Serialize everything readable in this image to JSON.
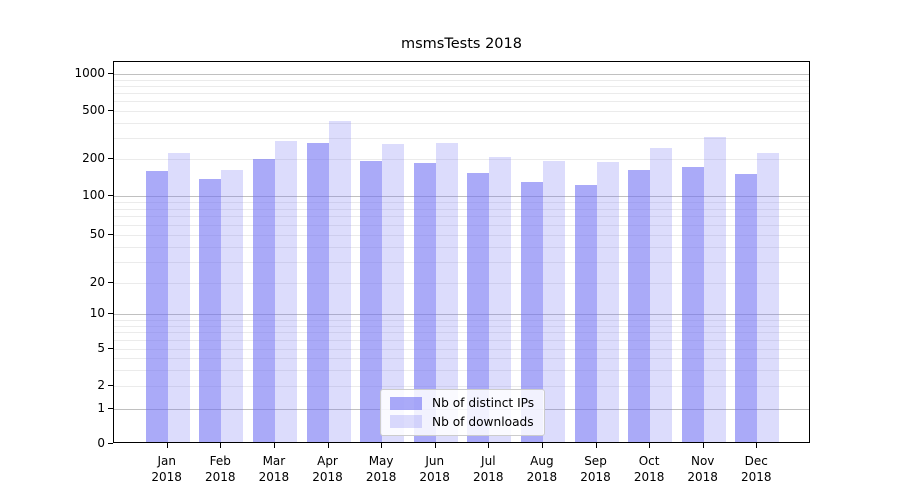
{
  "chart_data": {
    "type": "bar",
    "title": "msmsTests 2018",
    "categories": [
      "Jan 2018",
      "Feb 2018",
      "Mar 2018",
      "Apr 2018",
      "May 2018",
      "Jun 2018",
      "Jul 2018",
      "Aug 2018",
      "Sep 2018",
      "Oct 2018",
      "Nov 2018",
      "Dec 2018"
    ],
    "series": [
      {
        "name": "Nb of distinct IPs",
        "values": [
          155,
          133,
          194,
          264,
          185,
          179,
          150,
          125,
          118,
          157,
          166,
          146
        ]
      },
      {
        "name": "Nb of downloads",
        "values": [
          218,
          157,
          272,
          400,
          258,
          262,
          201,
          186,
          182,
          240,
          292,
          217
        ]
      }
    ],
    "xlabel": "",
    "ylabel": "",
    "yscale": "log-with-zero",
    "ytick_labels": [
      0,
      1,
      2,
      5,
      10,
      20,
      50,
      100,
      200,
      500,
      1000
    ],
    "ylim": [
      0,
      1200
    ],
    "grid": "on (major + minor horizontal)",
    "legend_position": "lower center",
    "colors": {
      "distinct_ips_bar": "rgba(108,108,243,0.58)",
      "downloads_bar": "rgba(108,108,243,0.24)",
      "grid_major": "#c0c0c0",
      "grid_minor": "#ebebeb",
      "axis": "#000000",
      "legend_border": "#cccccc"
    }
  }
}
